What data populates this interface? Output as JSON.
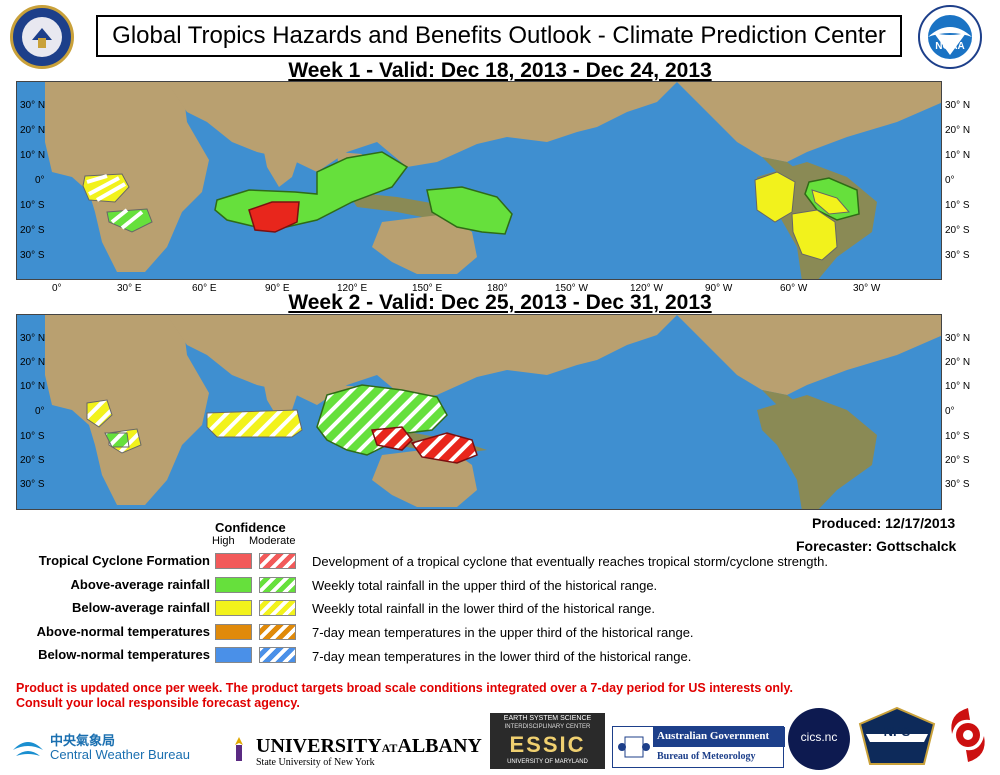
{
  "header": {
    "title": "Global Tropics Hazards and Benefits Outlook - Climate Prediction Center",
    "left_logo": "department-of-commerce-seal",
    "right_logo": "noaa-logo"
  },
  "week1": {
    "title": "Week 1 - Valid: Dec 18, 2013 - Dec 24, 2013"
  },
  "week2": {
    "title": "Week 2 - Valid: Dec 25, 2013 - Dec 31, 2013"
  },
  "axes": {
    "lat_labels": [
      "30° N",
      "20° N",
      "10° N",
      "0°",
      "10° S",
      "20° S",
      "30° S"
    ],
    "lon_labels": [
      "0°",
      "30° E",
      "60° E",
      "90° E",
      "120° E",
      "150° E",
      "180°",
      "150° W",
      "120° W",
      "90° W",
      "60° W",
      "30° W"
    ]
  },
  "legend": {
    "confidence_title": "Confidence",
    "high_label": "High",
    "moderate_label": "Moderate",
    "rows": [
      {
        "label": "Tropical Cyclone Formation",
        "desc": "Development of a tropical cyclone that eventually reaches tropical storm/cyclone strength.",
        "color": "#f25a5a"
      },
      {
        "label": "Above-average rainfall",
        "desc": "Weekly total rainfall in the upper third of the historical range.",
        "color": "#66e03c"
      },
      {
        "label": "Below-average rainfall",
        "desc": "Weekly total rainfall in the lower third of the historical range.",
        "color": "#f2f21c"
      },
      {
        "label": "Above-normal temperatures",
        "desc": "7-day mean temperatures in the upper third of the historical range.",
        "color": "#e08a0a"
      },
      {
        "label": "Below-normal temperatures",
        "desc": "7-day mean temperatures in the lower third of the historical range.",
        "color": "#4a90e8"
      }
    ]
  },
  "produced": "Produced: 12/17/2013",
  "forecaster": "Forecaster: Gottschalck",
  "notes": {
    "line1": "Product is updated once per week. The product targets broad scale conditions integrated over a 7-day period for US interests only.",
    "line2": "Consult your local responsible forecast agency."
  },
  "logos": {
    "cwb_chinese": "中央氣象局",
    "cwb_english": "Central Weather Bureau",
    "albany_main": "UNIVERSITY",
    "albany_at": "AT",
    "albany_name": "ALBANY",
    "albany_sub": "State University of New York",
    "essic_top": "EARTH SYSTEM SCIENCE",
    "essic_mid": "INTERDISCIPLINARY CENTER",
    "essic_word": "ESSIC",
    "essic_bottom": "UNIVERSITY OF MARYLAND",
    "aus_gov": "Australian Government",
    "aus_bom": "Bureau of Meteorology",
    "cics": "cics.nc",
    "nps": "NPS"
  },
  "colors": {
    "ocean": "#3f8fd0",
    "land": "#b9a070",
    "green": "#66e03c",
    "yellow": "#f2f21c",
    "red": "#f25a5a"
  }
}
